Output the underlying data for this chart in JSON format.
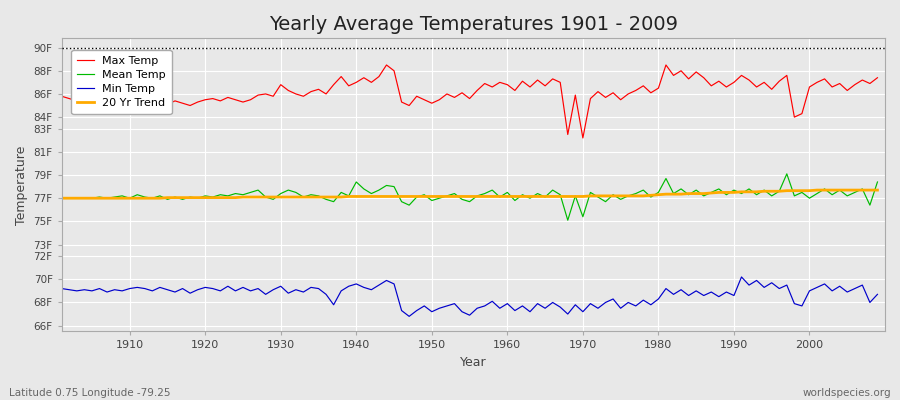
{
  "title": "Yearly Average Temperatures 1901 - 2009",
  "xlabel": "Year",
  "ylabel": "Temperature",
  "x_start": 1901,
  "x_end": 2009,
  "yticks": [
    66,
    68,
    70,
    72,
    73,
    75,
    77,
    79,
    81,
    83,
    84,
    86,
    88,
    90
  ],
  "ytick_labels": [
    "66F",
    "68F",
    "70F",
    "72F",
    "73F",
    "75F",
    "77F",
    "79F",
    "81F",
    "83F",
    "84F",
    "86F",
    "88F",
    "90F"
  ],
  "ylim": [
    65.5,
    90.8
  ],
  "xlim": [
    1901,
    2010
  ],
  "xticks": [
    1910,
    1920,
    1930,
    1940,
    1950,
    1960,
    1970,
    1980,
    1990,
    2000
  ],
  "fig_bg_color": "#e8e8e8",
  "plot_bg_color": "#e8e8e8",
  "grid_color": "#ffffff",
  "title_fontsize": 14,
  "colors": {
    "max": "#ff0000",
    "mean": "#00bb00",
    "min": "#0000cc",
    "trend": "#ffaa00"
  },
  "legend_labels": [
    "Max Temp",
    "Mean Temp",
    "Min Temp",
    "20 Yr Trend"
  ],
  "max_temps": [
    85.8,
    85.6,
    85.4,
    85.5,
    85.3,
    85.5,
    85.4,
    85.6,
    85.5,
    85.3,
    85.4,
    85.2,
    85.5,
    85.3,
    85.1,
    85.4,
    85.2,
    85.0,
    85.3,
    85.5,
    85.6,
    85.4,
    85.7,
    85.5,
    85.3,
    85.5,
    85.9,
    86.0,
    85.8,
    86.8,
    86.3,
    86.0,
    85.8,
    86.2,
    86.4,
    86.0,
    86.8,
    87.5,
    86.7,
    87.0,
    87.4,
    87.0,
    87.5,
    88.5,
    88.0,
    85.3,
    85.0,
    85.8,
    85.5,
    85.2,
    85.5,
    86.0,
    85.7,
    86.1,
    85.6,
    86.3,
    86.9,
    86.6,
    87.0,
    86.8,
    86.3,
    87.1,
    86.6,
    87.2,
    86.7,
    87.3,
    87.0,
    82.5,
    85.9,
    82.2,
    85.6,
    86.2,
    85.7,
    86.1,
    85.5,
    86.0,
    86.3,
    86.7,
    86.1,
    86.5,
    88.5,
    87.6,
    88.0,
    87.3,
    87.9,
    87.4,
    86.7,
    87.1,
    86.6,
    87.0,
    87.6,
    87.2,
    86.6,
    87.0,
    86.4,
    87.1,
    87.6,
    84.0,
    84.3,
    86.6,
    87.0,
    87.3,
    86.6,
    86.9,
    86.3,
    86.8,
    87.2,
    86.9,
    87.4
  ],
  "mean_temps": [
    77.0,
    77.0,
    77.0,
    77.0,
    77.0,
    77.1,
    77.0,
    77.1,
    77.2,
    77.0,
    77.3,
    77.1,
    77.0,
    77.2,
    76.9,
    77.1,
    76.9,
    77.1,
    77.0,
    77.2,
    77.1,
    77.3,
    77.2,
    77.4,
    77.3,
    77.5,
    77.7,
    77.1,
    76.9,
    77.4,
    77.7,
    77.5,
    77.1,
    77.3,
    77.2,
    76.9,
    76.7,
    77.5,
    77.2,
    78.4,
    77.8,
    77.4,
    77.7,
    78.1,
    78.0,
    76.7,
    76.4,
    77.1,
    77.3,
    76.8,
    77.0,
    77.2,
    77.4,
    76.9,
    76.7,
    77.2,
    77.4,
    77.7,
    77.1,
    77.5,
    76.8,
    77.3,
    77.0,
    77.4,
    77.1,
    77.7,
    77.3,
    75.1,
    77.2,
    75.4,
    77.5,
    77.1,
    76.7,
    77.3,
    76.9,
    77.2,
    77.4,
    77.7,
    77.1,
    77.5,
    78.7,
    77.4,
    77.8,
    77.3,
    77.7,
    77.2,
    77.5,
    77.8,
    77.3,
    77.7,
    77.4,
    77.8,
    77.3,
    77.7,
    77.2,
    77.6,
    79.1,
    77.2,
    77.5,
    77.0,
    77.4,
    77.8,
    77.3,
    77.7,
    77.2,
    77.5,
    77.8,
    76.4,
    78.4
  ],
  "min_temps": [
    69.2,
    69.1,
    69.0,
    69.1,
    69.0,
    69.2,
    68.9,
    69.1,
    69.0,
    69.2,
    69.3,
    69.2,
    69.0,
    69.3,
    69.1,
    68.9,
    69.2,
    68.8,
    69.1,
    69.3,
    69.2,
    69.0,
    69.4,
    69.0,
    69.3,
    69.0,
    69.2,
    68.7,
    69.1,
    69.4,
    68.8,
    69.1,
    68.9,
    69.3,
    69.2,
    68.7,
    67.8,
    69.0,
    69.4,
    69.6,
    69.3,
    69.1,
    69.5,
    69.9,
    69.6,
    67.3,
    66.8,
    67.3,
    67.7,
    67.2,
    67.5,
    67.7,
    67.9,
    67.2,
    66.9,
    67.5,
    67.7,
    68.1,
    67.5,
    67.9,
    67.3,
    67.7,
    67.2,
    67.9,
    67.5,
    68.0,
    67.6,
    67.0,
    67.8,
    67.2,
    67.9,
    67.5,
    68.0,
    68.3,
    67.5,
    68.0,
    67.7,
    68.2,
    67.8,
    68.3,
    69.2,
    68.7,
    69.1,
    68.6,
    69.0,
    68.6,
    68.9,
    68.5,
    68.9,
    68.6,
    70.2,
    69.5,
    69.9,
    69.3,
    69.7,
    69.2,
    69.5,
    67.9,
    67.7,
    69.0,
    69.3,
    69.6,
    69.0,
    69.4,
    68.9,
    69.2,
    69.5,
    68.0,
    68.7
  ],
  "trend_temps": [
    77.0,
    77.0,
    77.0,
    77.0,
    77.0,
    77.0,
    77.0,
    77.0,
    77.0,
    77.0,
    77.0,
    77.0,
    77.0,
    77.0,
    77.05,
    77.05,
    77.05,
    77.05,
    77.05,
    77.05,
    77.05,
    77.05,
    77.05,
    77.05,
    77.1,
    77.1,
    77.1,
    77.1,
    77.1,
    77.1,
    77.1,
    77.1,
    77.1,
    77.1,
    77.1,
    77.1,
    77.1,
    77.1,
    77.15,
    77.15,
    77.15,
    77.15,
    77.15,
    77.15,
    77.15,
    77.15,
    77.15,
    77.15,
    77.15,
    77.15,
    77.15,
    77.15,
    77.15,
    77.15,
    77.15,
    77.15,
    77.15,
    77.15,
    77.15,
    77.15,
    77.15,
    77.15,
    77.15,
    77.15,
    77.15,
    77.15,
    77.15,
    77.15,
    77.15,
    77.15,
    77.2,
    77.2,
    77.2,
    77.2,
    77.2,
    77.2,
    77.2,
    77.2,
    77.25,
    77.3,
    77.35,
    77.35,
    77.35,
    77.4,
    77.4,
    77.4,
    77.45,
    77.5,
    77.5,
    77.5,
    77.55,
    77.55,
    77.55,
    77.6,
    77.6,
    77.6,
    77.65,
    77.65,
    77.65,
    77.65,
    77.7,
    77.7,
    77.7,
    77.7,
    77.7,
    77.7,
    77.7,
    77.7,
    77.7
  ]
}
